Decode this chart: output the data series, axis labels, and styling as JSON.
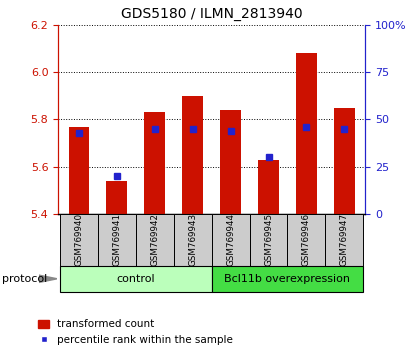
{
  "title": "GDS5180 / ILMN_2813940",
  "samples": [
    "GSM769940",
    "GSM769941",
    "GSM769942",
    "GSM769943",
    "GSM769944",
    "GSM769945",
    "GSM769946",
    "GSM769947"
  ],
  "bar_values": [
    5.77,
    5.54,
    5.83,
    5.9,
    5.84,
    5.63,
    6.08,
    5.85
  ],
  "bar_base": 5.4,
  "percentile_values": [
    43,
    20,
    45,
    45,
    44,
    30,
    46,
    45
  ],
  "percentile_scale_max": 100,
  "ylim": [
    5.4,
    6.2
  ],
  "yticks_left": [
    5.4,
    5.6,
    5.8,
    6.0,
    6.2
  ],
  "yticks_right": [
    0,
    25,
    50,
    75,
    100
  ],
  "bar_color": "#cc1100",
  "percentile_color": "#2222cc",
  "grid_color": "#000000",
  "control_samples": 4,
  "control_label": "control",
  "treatment_label": "Bcl11b overexpression",
  "control_bg": "#bbffbb",
  "treatment_bg": "#44dd44",
  "sample_bg": "#cccccc",
  "legend_bar_label": "transformed count",
  "legend_pct_label": "percentile rank within the sample",
  "protocol_label": "protocol",
  "title_fontsize": 10
}
